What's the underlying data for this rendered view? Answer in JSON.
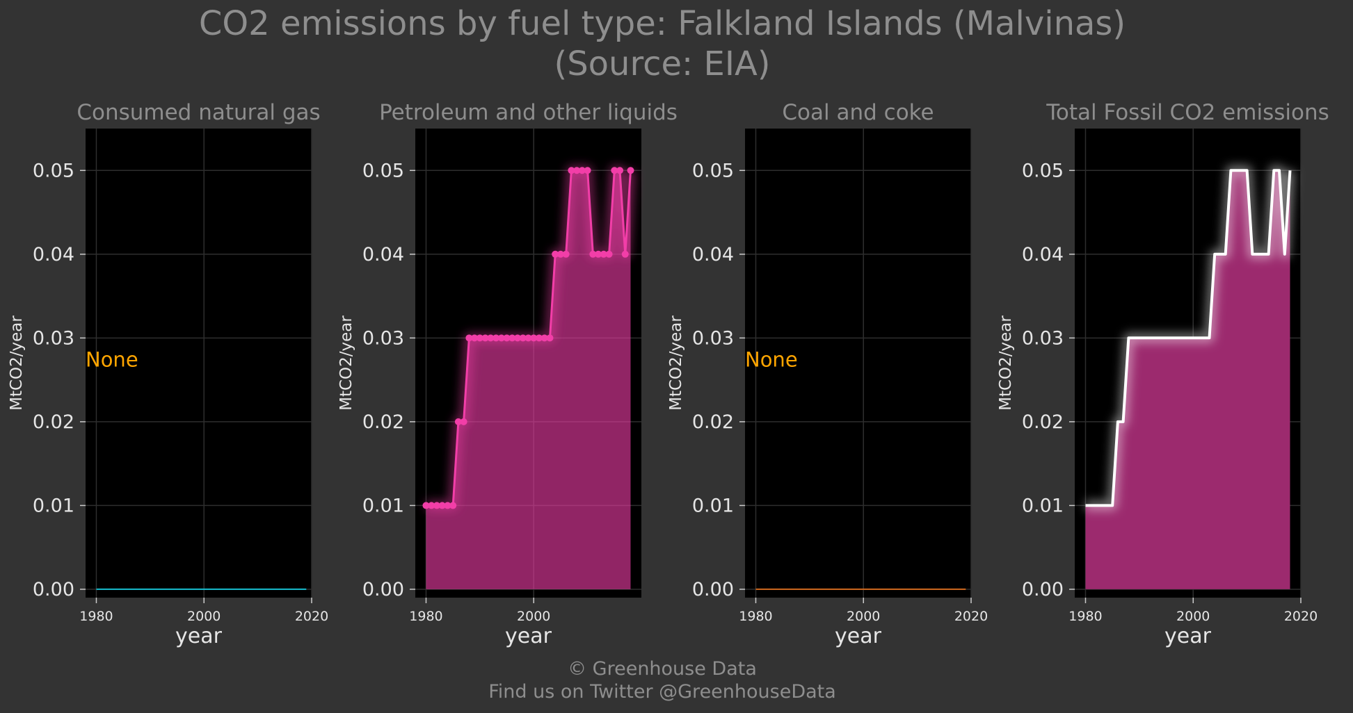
{
  "title_line1": "CO2 emissions by fuel type: Falkland Islands (Malvinas)",
  "title_line2": "(Source: EIA)",
  "footer_line1": "© Greenhouse Data",
  "footer_line2": "Find us on Twitter @GreenhouseData",
  "chart_data": [
    {
      "type": "line",
      "title": "Consumed natural gas",
      "xlabel": "year",
      "ylabel": "MtCO2/year",
      "xlim": [
        1978,
        2020
      ],
      "ylim": [
        -0.001,
        0.055
      ],
      "xticks": [
        1980,
        2000,
        2020
      ],
      "yticks": [
        0.0,
        0.01,
        0.02,
        0.03,
        0.04,
        0.05
      ],
      "ytick_labels": [
        "0.00",
        "0.01",
        "0.02",
        "0.03",
        "0.04",
        "0.05"
      ],
      "grid": true,
      "annotation": "None",
      "color": "#17becf",
      "series": [
        {
          "x": [
            1980,
            2019
          ],
          "values": [
            0,
            0
          ]
        }
      ]
    },
    {
      "type": "area",
      "title": "Petroleum and other liquids",
      "xlabel": "year",
      "ylabel": "MtCO2/year",
      "xlim": [
        1978,
        2020
      ],
      "ylim": [
        -0.001,
        0.055
      ],
      "xticks": [
        1980,
        2000
      ],
      "yticks": [
        0.0,
        0.01,
        0.02,
        0.03,
        0.04,
        0.05
      ],
      "ytick_labels": [
        "0.00",
        "0.01",
        "0.02",
        "0.03",
        "0.04",
        "0.05"
      ],
      "grid": true,
      "color": "#f23ea8",
      "markers": true,
      "series": [
        {
          "x": [
            1980,
            1981,
            1982,
            1983,
            1984,
            1985,
            1986,
            1987,
            1988,
            1989,
            1990,
            1991,
            1992,
            1993,
            1994,
            1995,
            1996,
            1997,
            1998,
            1999,
            2000,
            2001,
            2002,
            2003,
            2004,
            2005,
            2006,
            2007,
            2008,
            2009,
            2010,
            2011,
            2012,
            2013,
            2014,
            2015,
            2016,
            2017,
            2018
          ],
          "values": [
            0.01,
            0.01,
            0.01,
            0.01,
            0.01,
            0.01,
            0.02,
            0.02,
            0.03,
            0.03,
            0.03,
            0.03,
            0.03,
            0.03,
            0.03,
            0.03,
            0.03,
            0.03,
            0.03,
            0.03,
            0.03,
            0.03,
            0.03,
            0.03,
            0.04,
            0.04,
            0.04,
            0.05,
            0.05,
            0.05,
            0.05,
            0.04,
            0.04,
            0.04,
            0.04,
            0.05,
            0.05,
            0.04,
            0.05
          ]
        }
      ]
    },
    {
      "type": "line",
      "title": "Coal and coke",
      "xlabel": "year",
      "ylabel": "MtCO2/year",
      "xlim": [
        1978,
        2020
      ],
      "ylim": [
        -0.001,
        0.055
      ],
      "xticks": [
        1980,
        2000,
        2020
      ],
      "yticks": [
        0.0,
        0.01,
        0.02,
        0.03,
        0.04,
        0.05
      ],
      "ytick_labels": [
        "0.00",
        "0.01",
        "0.02",
        "0.03",
        "0.04",
        "0.05"
      ],
      "grid": true,
      "annotation": "None",
      "color": "#d2691e",
      "series": [
        {
          "x": [
            1980,
            2019
          ],
          "values": [
            0,
            0
          ]
        }
      ]
    },
    {
      "type": "area",
      "title": "Total Fossil CO2 emissions",
      "xlabel": "year",
      "ylabel": "MtCO2/year",
      "xlim": [
        1978,
        2020
      ],
      "ylim": [
        -0.001,
        0.055
      ],
      "xticks": [
        1980,
        2000,
        2020
      ],
      "yticks": [
        0.0,
        0.01,
        0.02,
        0.03,
        0.04,
        0.05
      ],
      "ytick_labels": [
        "0.00",
        "0.01",
        "0.02",
        "0.03",
        "0.04",
        "0.05"
      ],
      "grid": true,
      "color": "#ffffff",
      "fill_color": "#9c2a6e",
      "markers": false,
      "series": [
        {
          "x": [
            1980,
            1981,
            1982,
            1983,
            1984,
            1985,
            1986,
            1987,
            1988,
            1989,
            1990,
            1991,
            1992,
            1993,
            1994,
            1995,
            1996,
            1997,
            1998,
            1999,
            2000,
            2001,
            2002,
            2003,
            2004,
            2005,
            2006,
            2007,
            2008,
            2009,
            2010,
            2011,
            2012,
            2013,
            2014,
            2015,
            2016,
            2017,
            2018
          ],
          "values": [
            0.01,
            0.01,
            0.01,
            0.01,
            0.01,
            0.01,
            0.02,
            0.02,
            0.03,
            0.03,
            0.03,
            0.03,
            0.03,
            0.03,
            0.03,
            0.03,
            0.03,
            0.03,
            0.03,
            0.03,
            0.03,
            0.03,
            0.03,
            0.03,
            0.04,
            0.04,
            0.04,
            0.05,
            0.05,
            0.05,
            0.05,
            0.04,
            0.04,
            0.04,
            0.04,
            0.05,
            0.05,
            0.04,
            0.05
          ]
        }
      ]
    }
  ]
}
